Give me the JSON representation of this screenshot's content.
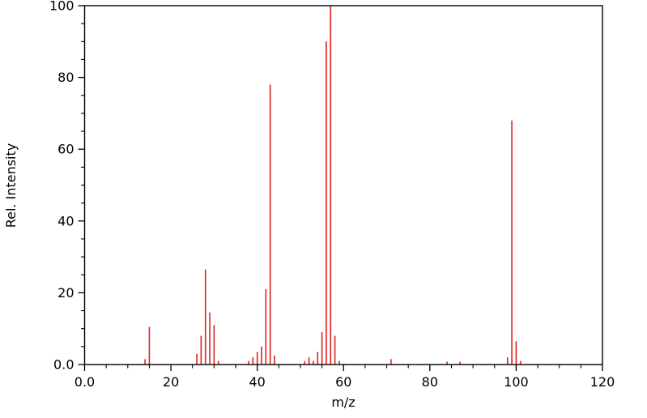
{
  "chart_data": {
    "type": "bar",
    "subtype": "mass-spectrum-stick-plot",
    "title": "",
    "xlabel": "m/z",
    "ylabel": "Rel. Intensity",
    "xlim": [
      0,
      120
    ],
    "ylim": [
      0,
      100
    ],
    "grid": false,
    "legend": "none",
    "axes_box": true,
    "bar_color": "#e02020",
    "axis_color": "#000000",
    "x_major_ticks": [
      {
        "value": 0,
        "label": "0.0"
      },
      {
        "value": 20,
        "label": "20"
      },
      {
        "value": 40,
        "label": "40"
      },
      {
        "value": 60,
        "label": "60"
      },
      {
        "value": 80,
        "label": "80"
      },
      {
        "value": 100,
        "label": "100"
      },
      {
        "value": 120,
        "label": "120"
      }
    ],
    "x_minor_step": 5,
    "y_major_ticks": [
      {
        "value": 0,
        "label": "0.0"
      },
      {
        "value": 20,
        "label": "20"
      },
      {
        "value": 40,
        "label": "40"
      },
      {
        "value": 60,
        "label": "60"
      },
      {
        "value": 80,
        "label": "80"
      },
      {
        "value": 100,
        "label": "100"
      }
    ],
    "y_minor_step": 5,
    "peaks": [
      {
        "mz": 14,
        "intensity": 1.5
      },
      {
        "mz": 15,
        "intensity": 10.5
      },
      {
        "mz": 26,
        "intensity": 3
      },
      {
        "mz": 27,
        "intensity": 8
      },
      {
        "mz": 28,
        "intensity": 26.5
      },
      {
        "mz": 29,
        "intensity": 14.5
      },
      {
        "mz": 30,
        "intensity": 11
      },
      {
        "mz": 31,
        "intensity": 1
      },
      {
        "mz": 38,
        "intensity": 1
      },
      {
        "mz": 39,
        "intensity": 2
      },
      {
        "mz": 40,
        "intensity": 3.5
      },
      {
        "mz": 41,
        "intensity": 5
      },
      {
        "mz": 42,
        "intensity": 21
      },
      {
        "mz": 43,
        "intensity": 78
      },
      {
        "mz": 44,
        "intensity": 2.5
      },
      {
        "mz": 51,
        "intensity": 1
      },
      {
        "mz": 52,
        "intensity": 2
      },
      {
        "mz": 53,
        "intensity": 1
      },
      {
        "mz": 54,
        "intensity": 3.5
      },
      {
        "mz": 55,
        "intensity": 9
      },
      {
        "mz": 56,
        "intensity": 90
      },
      {
        "mz": 57,
        "intensity": 100
      },
      {
        "mz": 58,
        "intensity": 8
      },
      {
        "mz": 59,
        "intensity": 1
      },
      {
        "mz": 71,
        "intensity": 1.5
      },
      {
        "mz": 84,
        "intensity": 0.8
      },
      {
        "mz": 87,
        "intensity": 0.8
      },
      {
        "mz": 98,
        "intensity": 2
      },
      {
        "mz": 99,
        "intensity": 68
      },
      {
        "mz": 100,
        "intensity": 6.5
      },
      {
        "mz": 101,
        "intensity": 1
      }
    ]
  }
}
